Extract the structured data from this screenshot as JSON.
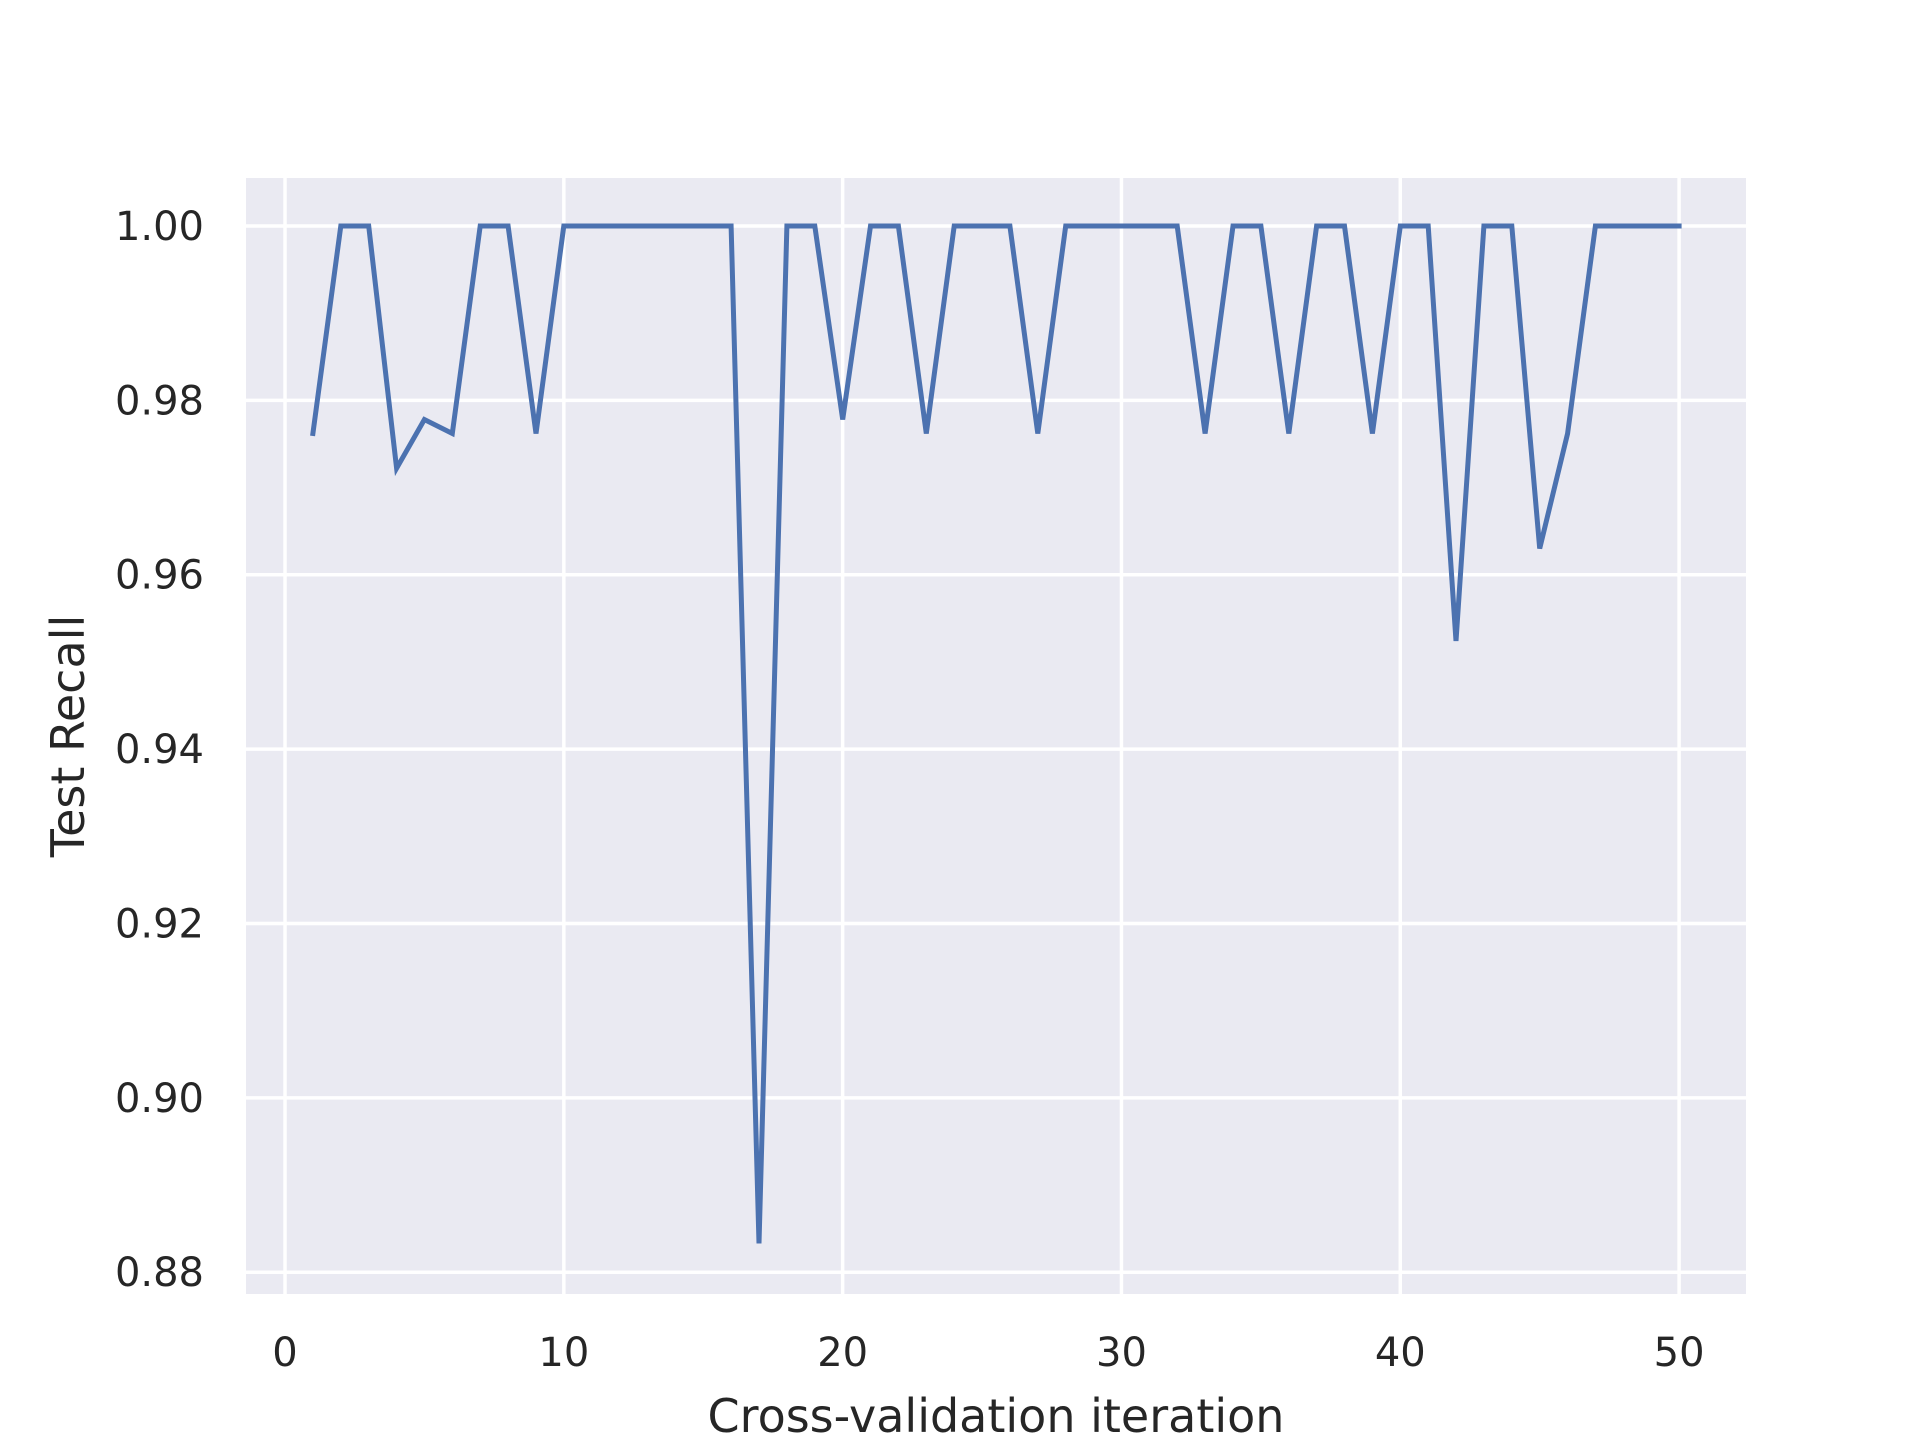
{
  "chart_data": {
    "type": "line",
    "title": "",
    "xlabel": "Cross-validation iteration",
    "ylabel": "Test Recall",
    "xlim": [
      -1.4,
      52.4
    ],
    "ylim": [
      0.8775,
      1.0055
    ],
    "xticks": [
      0,
      10,
      20,
      30,
      40,
      50
    ],
    "xtick_labels": [
      "0",
      "10",
      "20",
      "30",
      "40",
      "50"
    ],
    "yticks": [
      0.88,
      0.9,
      0.92,
      0.94,
      0.96,
      0.98,
      1.0
    ],
    "ytick_labels": [
      "0.88",
      "0.90",
      "0.92",
      "0.94",
      "0.96",
      "0.98",
      "1.00"
    ],
    "grid": true,
    "background_color": "#eaeaf2",
    "grid_color": "#ffffff",
    "series": [
      {
        "color": "#4c72b0",
        "x": [
          1,
          2,
          3,
          4,
          5,
          6,
          7,
          8,
          9,
          10,
          11,
          12,
          13,
          14,
          15,
          16,
          17,
          18,
          19,
          20,
          21,
          22,
          23,
          24,
          25,
          26,
          27,
          28,
          29,
          30,
          31,
          32,
          33,
          34,
          35,
          36,
          37,
          38,
          39,
          40,
          41,
          42,
          43,
          44,
          45,
          46,
          47,
          48,
          49,
          50
        ],
        "y": [
          0.9762,
          1.0,
          1.0,
          0.9722,
          0.9778,
          0.9762,
          1.0,
          1.0,
          0.9762,
          1.0,
          1.0,
          1.0,
          1.0,
          1.0,
          1.0,
          1.0,
          0.8833,
          1.0,
          1.0,
          0.9778,
          1.0,
          1.0,
          0.9762,
          1.0,
          1.0,
          1.0,
          0.9762,
          1.0,
          1.0,
          1.0,
          1.0,
          1.0,
          0.9762,
          1.0,
          1.0,
          0.9762,
          1.0,
          1.0,
          0.9762,
          1.0,
          1.0,
          0.9524,
          1.0,
          1.0,
          0.963,
          0.9762,
          1.0,
          1.0,
          1.0,
          1.0
        ]
      }
    ]
  }
}
